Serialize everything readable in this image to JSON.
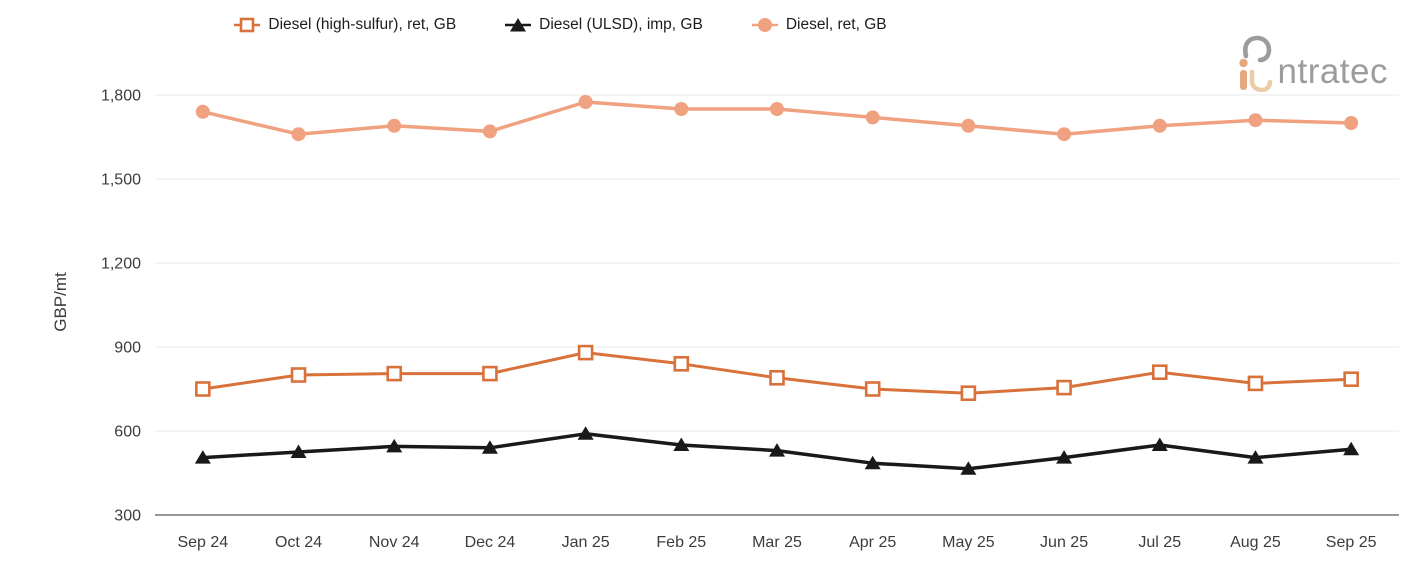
{
  "logo": {
    "text": "ntratec",
    "brand": "intratec"
  },
  "legend": {
    "position": "top"
  },
  "chart_data": {
    "type": "line",
    "title": "",
    "xlabel": "",
    "ylabel": "GBP/mt",
    "categories": [
      "Sep 24",
      "Oct 24",
      "Nov 24",
      "Dec 24",
      "Jan 25",
      "Feb 25",
      "Mar 25",
      "Apr 25",
      "May 25",
      "Jun 25",
      "Jul 25",
      "Aug 25",
      "Sep 25"
    ],
    "ylim": [
      300,
      1800
    ],
    "yticks": [
      300,
      600,
      900,
      1200,
      1500,
      1800
    ],
    "grid": true,
    "legend_position": "top",
    "series": [
      {
        "name": "Diesel (high-sulfur), ret, GB",
        "color": "#D9713A",
        "marker": "square-open",
        "values": [
          750,
          800,
          805,
          805,
          880,
          840,
          790,
          750,
          735,
          755,
          810,
          770,
          785
        ]
      },
      {
        "name": "Diesel (ULSD), imp, GB",
        "color": "#191919",
        "marker": "triangle",
        "values": [
          505,
          525,
          545,
          540,
          590,
          550,
          530,
          485,
          465,
          505,
          550,
          505,
          535
        ]
      },
      {
        "name": "Diesel, ret, GB",
        "color": "#F0A180",
        "marker": "circle",
        "values": [
          1740,
          1660,
          1690,
          1670,
          1775,
          1750,
          1750,
          1720,
          1690,
          1660,
          1690,
          1710,
          1700
        ]
      }
    ],
    "style": {
      "grid_color": "#E8E8E8",
      "axis_line_color": "#757575",
      "tick_text_color": "#3C3C3C",
      "background": "#FFFFFF"
    }
  }
}
